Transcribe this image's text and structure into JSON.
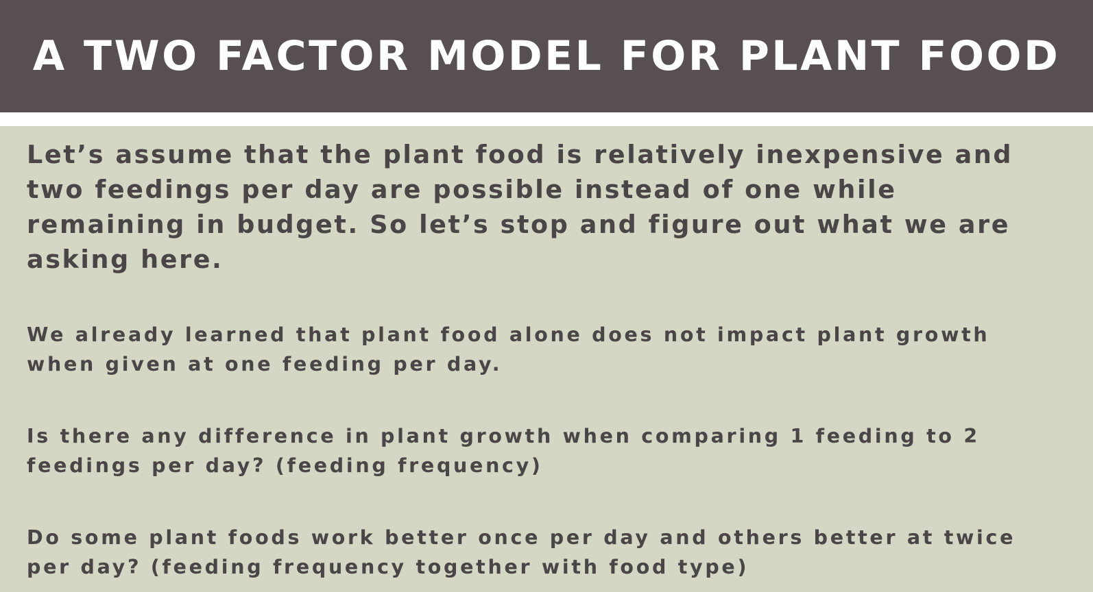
{
  "slide": {
    "title": "A TWO FACTOR MODEL FOR PLANT FOOD",
    "paragraphs": [
      "Let’s assume that the plant food is relatively inexpensive and two feedings per day are possible instead of one while remaining in budget. So let’s stop and figure out what we are asking here.",
      "We already learned that plant food alone does not impact plant growth when given at one feeding per day.",
      "Is there any difference in plant growth when comparing 1 feeding to 2 feedings per day? (feeding frequency)",
      "Do some plant foods work better once per day and others better at twice per day? (feeding frequency together with food type)"
    ]
  },
  "colors": {
    "title_bar": "#574f51",
    "title_text": "#ffffff",
    "divider": "#ffffff",
    "background": "#d4d7c4",
    "body_text": "#4a4546"
  }
}
